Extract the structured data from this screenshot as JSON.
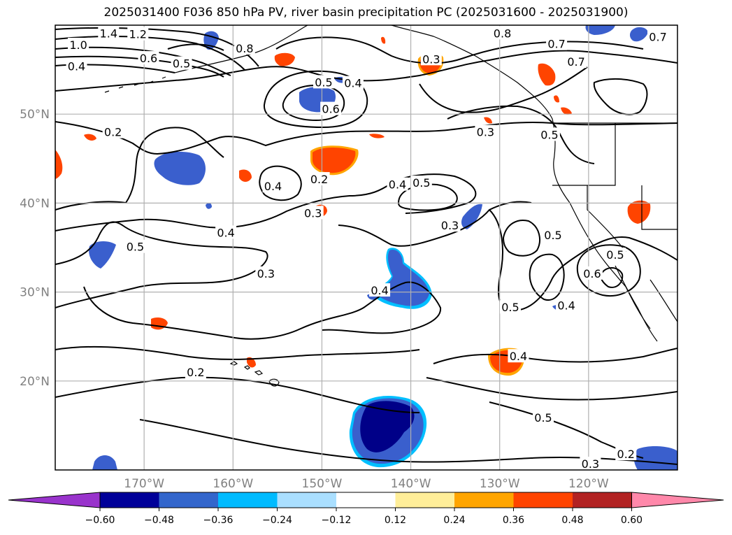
{
  "title": "2025031400 F036 850 hPa PV, river basin precipitation PC (2025031600 - 2025031900)",
  "map": {
    "extent": {
      "lon_min": -180,
      "lon_max": -110,
      "lat_min": 10,
      "lat_max": 60
    },
    "lat_ticks": [
      {
        "value": 20,
        "label": "20°N"
      },
      {
        "value": 30,
        "label": "30°N"
      },
      {
        "value": 40,
        "label": "40°N"
      },
      {
        "value": 50,
        "label": "50°N"
      }
    ],
    "lon_ticks": [
      {
        "value": -170,
        "label": "170°W"
      },
      {
        "value": -160,
        "label": "160°W"
      },
      {
        "value": -150,
        "label": "150°W"
      },
      {
        "value": -140,
        "label": "140°W"
      },
      {
        "value": -130,
        "label": "130°W"
      },
      {
        "value": -120,
        "label": "120°W"
      }
    ],
    "gridlines": true,
    "contour_labels": [
      {
        "text": "1.4",
        "lon": -174,
        "lat": 59.1
      },
      {
        "text": "1.2",
        "lon": -170.7,
        "lat": 59.0
      },
      {
        "text": "1.0",
        "lon": -177.4,
        "lat": 57.8
      },
      {
        "text": "0.6",
        "lon": -169.5,
        "lat": 56.3
      },
      {
        "text": "0.5",
        "lon": -165.8,
        "lat": 55.7
      },
      {
        "text": "0.8",
        "lon": -158.7,
        "lat": 57.4
      },
      {
        "text": "0.4",
        "lon": -177.6,
        "lat": 55.4
      },
      {
        "text": "0.5",
        "lon": -149.8,
        "lat": 53.6
      },
      {
        "text": "0.4",
        "lon": -146.5,
        "lat": 53.5
      },
      {
        "text": "0.6",
        "lon": -149.0,
        "lat": 50.6
      },
      {
        "text": "0.3",
        "lon": -137.7,
        "lat": 56.2
      },
      {
        "text": "0.8",
        "lon": -129.7,
        "lat": 59.1
      },
      {
        "text": "0.7",
        "lon": -123.6,
        "lat": 57.9
      },
      {
        "text": "0.7",
        "lon": -121.4,
        "lat": 55.9
      },
      {
        "text": "0.7",
        "lon": -112.2,
        "lat": 58.7
      },
      {
        "text": "0.2",
        "lon": -173.5,
        "lat": 48.0
      },
      {
        "text": "0.3",
        "lon": -131.6,
        "lat": 48.0
      },
      {
        "text": "0.5",
        "lon": -124.4,
        "lat": 47.7
      },
      {
        "text": "0.2",
        "lon": -150.3,
        "lat": 42.7
      },
      {
        "text": "0.4",
        "lon": -155.5,
        "lat": 41.9
      },
      {
        "text": "0.4",
        "lon": -141.5,
        "lat": 42.1
      },
      {
        "text": "0.5",
        "lon": -138.8,
        "lat": 42.3
      },
      {
        "text": "0.3",
        "lon": -151.0,
        "lat": 38.9
      },
      {
        "text": "0.3",
        "lon": -135.6,
        "lat": 37.5
      },
      {
        "text": "0.4",
        "lon": -160.8,
        "lat": 36.7
      },
      {
        "text": "0.5",
        "lon": -171.0,
        "lat": 35.1
      },
      {
        "text": "0.5",
        "lon": -124.0,
        "lat": 36.4
      },
      {
        "text": "0.5",
        "lon": -117.0,
        "lat": 34.2
      },
      {
        "text": "0.6",
        "lon": -119.6,
        "lat": 32.1
      },
      {
        "text": "0.3",
        "lon": -156.3,
        "lat": 32.1
      },
      {
        "text": "0.4",
        "lon": -143.5,
        "lat": 30.2
      },
      {
        "text": "0.4",
        "lon": -122.5,
        "lat": 28.5
      },
      {
        "text": "0.5",
        "lon": -128.8,
        "lat": 28.3
      },
      {
        "text": "0.4",
        "lon": -127.9,
        "lat": 22.8
      },
      {
        "text": "0.2",
        "lon": -164.2,
        "lat": 21.0
      },
      {
        "text": "0.5",
        "lon": -125.1,
        "lat": 15.9
      },
      {
        "text": "0.2",
        "lon": -115.8,
        "lat": 11.8
      },
      {
        "text": "0.3",
        "lon": -119.8,
        "lat": 10.7
      }
    ]
  },
  "colorbar": {
    "colors": [
      "#9933cc",
      "#000099",
      "#3366cc",
      "#00bbff",
      "#aadfff",
      "#ffffff",
      "#ffee99",
      "#ffa500",
      "#ff4400",
      "#b22222",
      "#ff88aa"
    ],
    "tick_labels": [
      "−0.60",
      "−0.48",
      "−0.36",
      "−0.24",
      "−0.12",
      "0.12",
      "0.24",
      "0.36",
      "0.48",
      "0.60"
    ]
  },
  "fill_colors": {
    "dark_blue": "#000088",
    "blue": "#3a5fcd",
    "cyan": "#00bfff",
    "orange": "#ffa500",
    "red": "#ff4400",
    "yellow": "#ffee99"
  }
}
